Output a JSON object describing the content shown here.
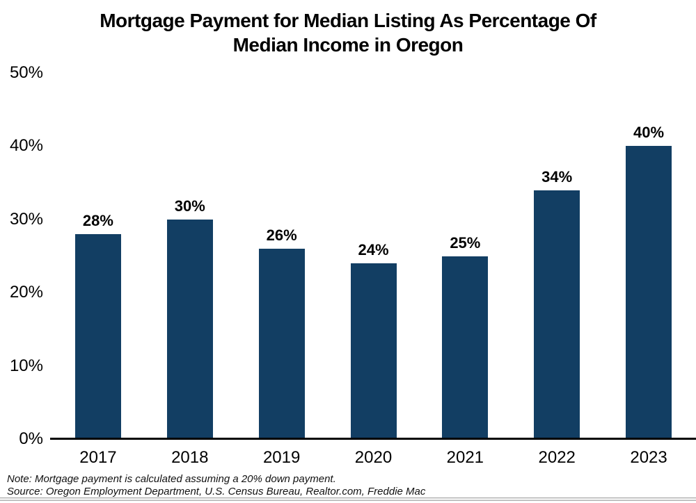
{
  "chart_data": {
    "type": "bar",
    "title": "Mortgage Payment for Median Listing As Percentage Of Median Income in Oregon",
    "title_lines": [
      "Mortgage Payment for Median Listing As Percentage Of",
      "Median Income in Oregon"
    ],
    "categories": [
      "2017",
      "2018",
      "2019",
      "2020",
      "2021",
      "2022",
      "2023"
    ],
    "values": [
      28,
      30,
      26,
      24,
      25,
      34,
      40
    ],
    "bar_labels": [
      "28%",
      "30%",
      "26%",
      "24%",
      "25%",
      "34%",
      "40%"
    ],
    "xlabel": "",
    "ylabel": "",
    "ylim": [
      0,
      50
    ],
    "ytick_values": [
      0,
      10,
      20,
      30,
      40,
      50
    ],
    "ytick_labels": [
      "0%",
      "10%",
      "20%",
      "30%",
      "40%",
      "50%"
    ],
    "grid": false,
    "legend": false,
    "bar_color": "#123e63",
    "axis_color": "#000000"
  },
  "footnotes": {
    "note": "Note: Mortgage payment is calculated assuming a 20% down payment.",
    "source": "Source: Oregon Employment Department, U.S. Census Bureau, Realtor.com, Freddie Mac"
  }
}
